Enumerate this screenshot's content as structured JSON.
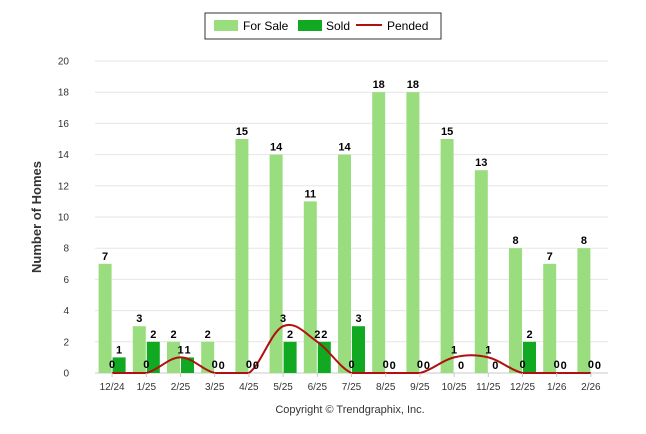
{
  "chart_data": {
    "type": "bar",
    "title": "",
    "xlabel": "",
    "ylabel": "Number of Homes",
    "ylim": [
      0,
      20
    ],
    "yticks": [
      0,
      2,
      4,
      6,
      8,
      10,
      12,
      14,
      16,
      18,
      20
    ],
    "categories": [
      "12/24",
      "1/25",
      "2/25",
      "3/25",
      "4/25",
      "5/25",
      "6/25",
      "7/25",
      "8/25",
      "9/25",
      "10/25",
      "11/25",
      "12/25",
      "1/26",
      "2/26"
    ],
    "series": [
      {
        "name": "For Sale",
        "kind": "bar",
        "color": "#99dd7f",
        "values": [
          7,
          3,
          2,
          2,
          15,
          14,
          11,
          14,
          18,
          18,
          15,
          13,
          8,
          7,
          8
        ]
      },
      {
        "name": "Sold",
        "kind": "bar",
        "color": "#11a822",
        "values": [
          1,
          2,
          1,
          0,
          0,
          2,
          2,
          3,
          0,
          0,
          0,
          0,
          2,
          0,
          0
        ]
      },
      {
        "name": "Pended",
        "kind": "line",
        "color": "#b01010",
        "values": [
          0,
          0,
          1,
          0,
          0,
          3,
          2,
          0,
          0,
          0,
          1,
          1,
          0,
          0,
          0
        ]
      }
    ],
    "legend_position": "top-center",
    "credit": "Copyright © Trendgraphix, Inc."
  }
}
